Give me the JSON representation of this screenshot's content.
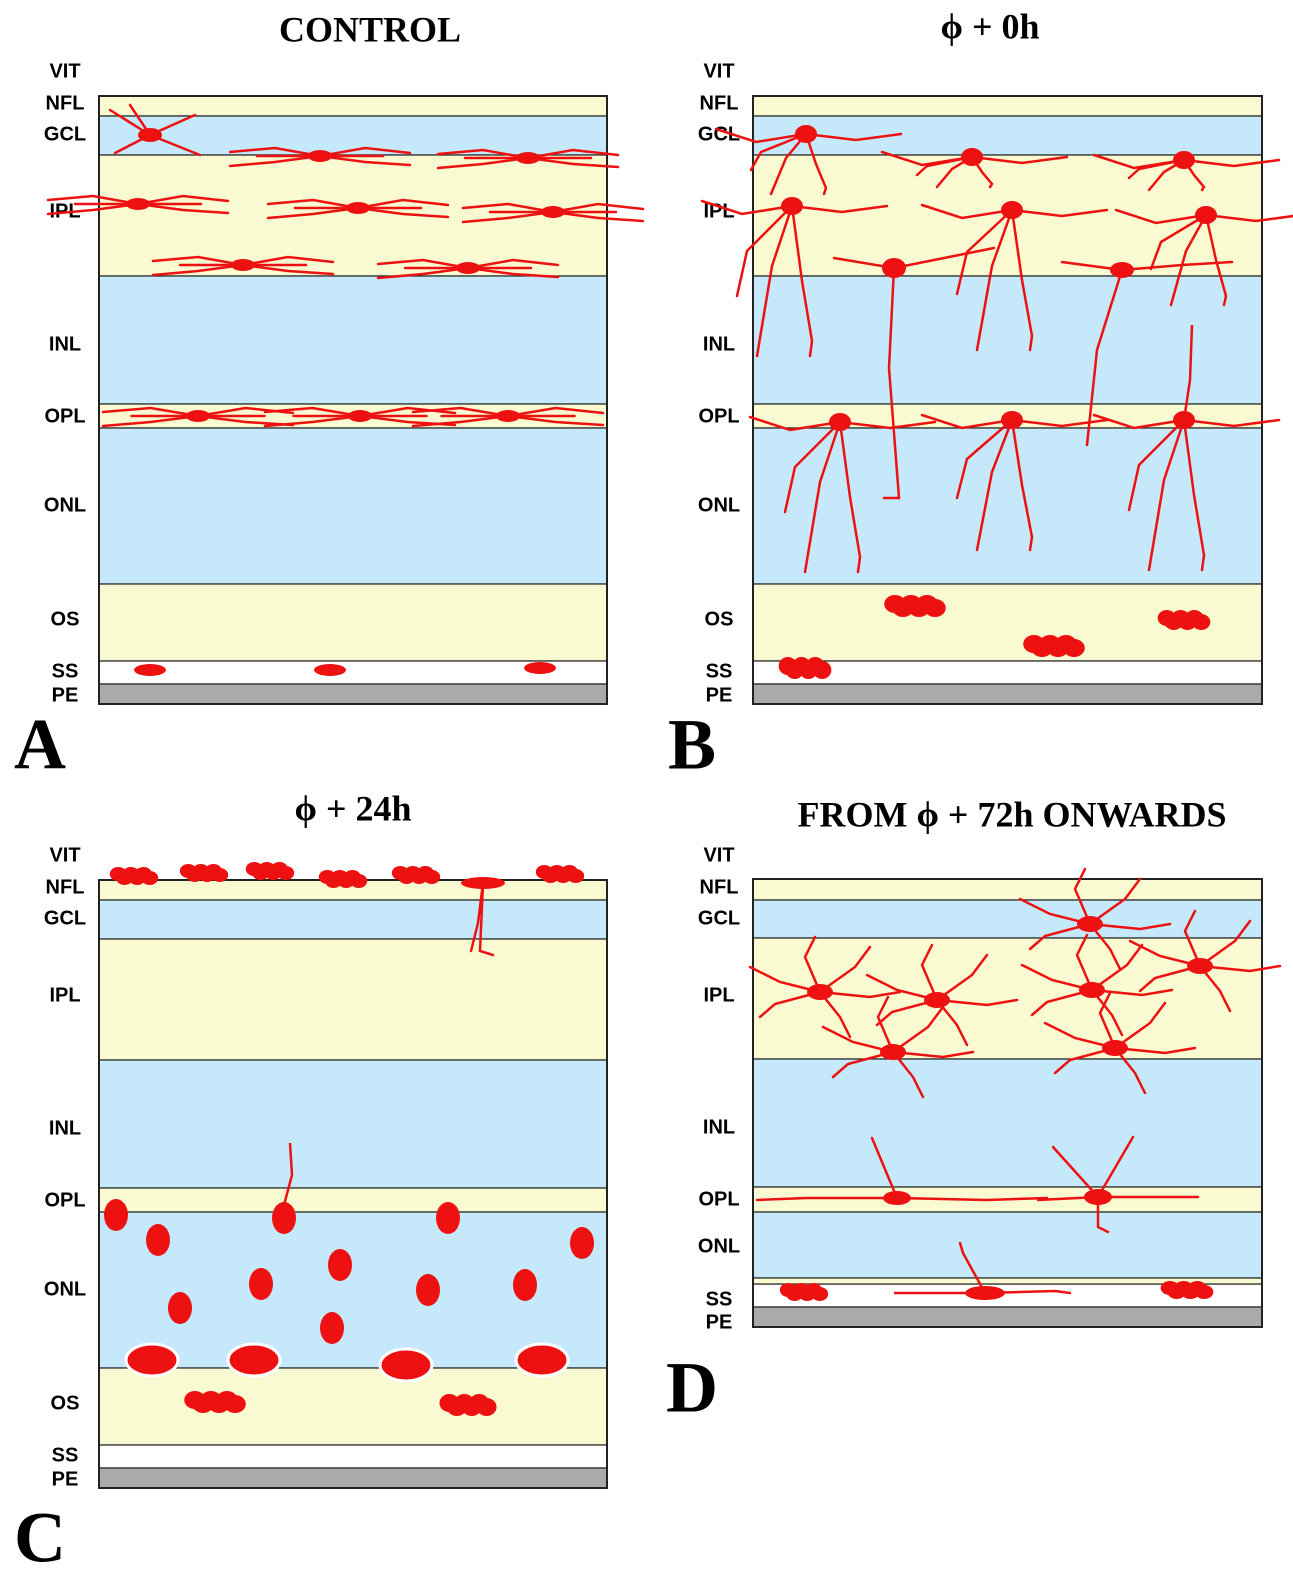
{
  "panels": [
    {
      "letter": "A",
      "title": "CONTROL",
      "layers": [
        "VIT",
        "NFL",
        "GCL",
        "IPL",
        "INL",
        "OPL",
        "ONL",
        "OS",
        "SS",
        "PE"
      ]
    },
    {
      "letter": "B",
      "title": "ϕ + 0h",
      "layers": [
        "VIT",
        "NFL",
        "GCL",
        "IPL",
        "INL",
        "OPL",
        "ONL",
        "OS",
        "SS",
        "PE"
      ]
    },
    {
      "letter": "C",
      "title": "ϕ + 24h",
      "layers": [
        "VIT",
        "NFL",
        "GCL",
        "IPL",
        "INL",
        "OPL",
        "ONL",
        "OS",
        "SS",
        "PE"
      ]
    },
    {
      "letter": "D",
      "title": "FROM ϕ + 72h ONWARDS",
      "layers": [
        "VIT",
        "NFL",
        "GCL",
        "IPL",
        "INL",
        "OPL",
        "ONL",
        "SS",
        "PE"
      ]
    }
  ]
}
